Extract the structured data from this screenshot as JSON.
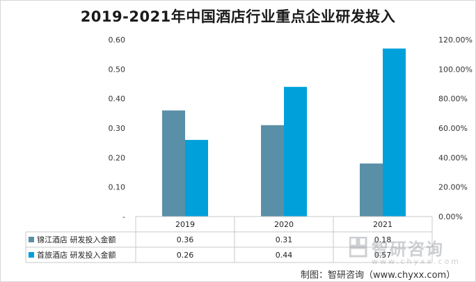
{
  "chart_data": {
    "type": "bar",
    "title": "2019-2021年中国酒店行业重点企业研发投入",
    "categories": [
      "2019",
      "2020",
      "2021"
    ],
    "series": [
      {
        "name": "锦江酒店 研发投入金额",
        "values": [
          0.36,
          0.31,
          0.18
        ],
        "color": "#5a8fa8",
        "axis": "left"
      },
      {
        "name": "首旅酒店 研发投入金额",
        "values": [
          0.26,
          0.44,
          0.57
        ],
        "color": "#00a0db",
        "axis": "left"
      }
    ],
    "y_left": {
      "ticks": [
        "-",
        "0.10",
        "0.20",
        "0.30",
        "0.40",
        "0.50",
        "0.60"
      ],
      "ylim": [
        0,
        0.6
      ]
    },
    "y_right": {
      "ticks": [
        "0.00%",
        "20.00%",
        "40.00%",
        "60.00%",
        "80.00%",
        "100.00%",
        "120.00%"
      ],
      "ylim": [
        0,
        1.2
      ]
    },
    "table": {
      "rows": [
        {
          "label": "锦江酒店 研发投入金额",
          "values": [
            "0.36",
            "0.31",
            "0.18"
          ]
        },
        {
          "label": "首旅酒店 研发投入金额",
          "values": [
            "0.26",
            "0.44",
            "0.57"
          ]
        }
      ]
    },
    "grid": false,
    "legend": "data-table"
  },
  "watermark": {
    "name": "智研咨询",
    "url": "www.chyxx.com"
  },
  "source": "制图：智研咨询（www.chyxx.com）"
}
